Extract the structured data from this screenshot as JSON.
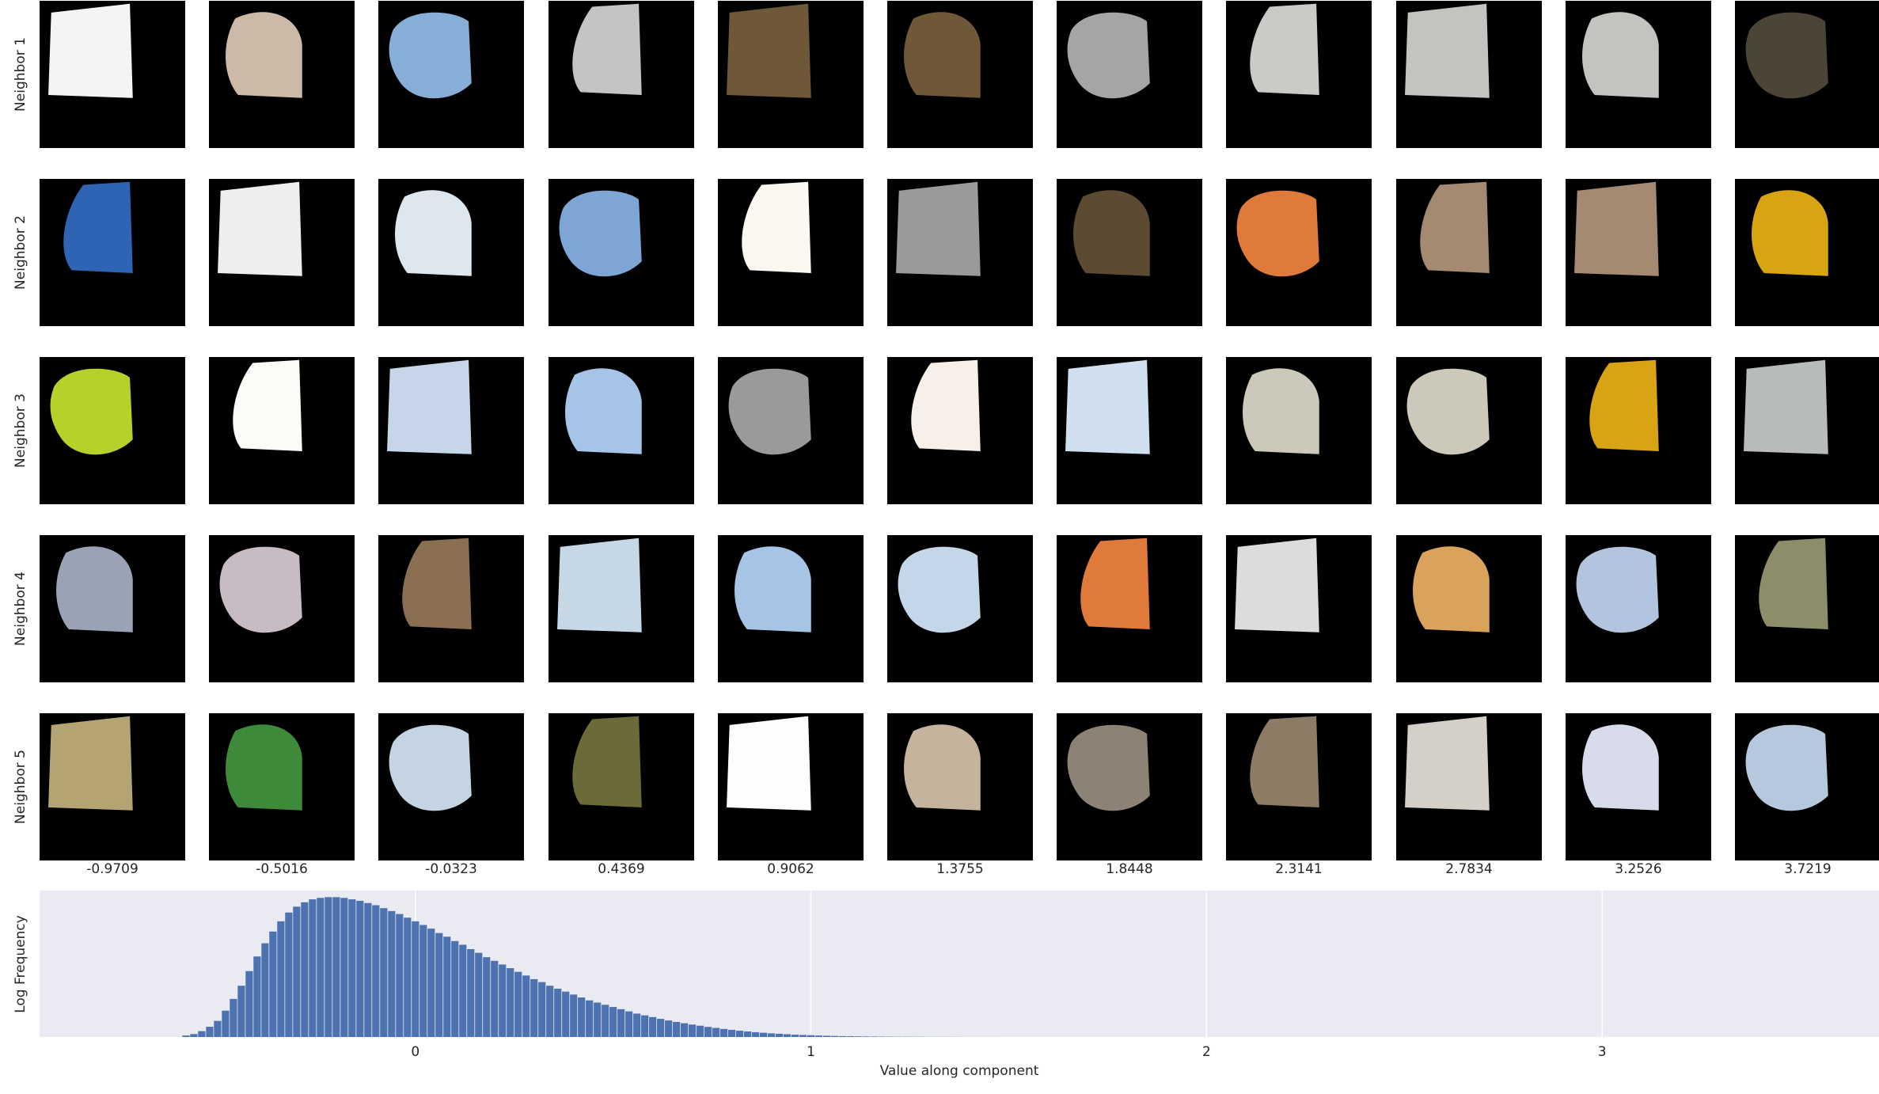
{
  "row_labels": [
    "Neighbor 1",
    "Neighbor 2",
    "Neighbor 3",
    "Neighbor 4",
    "Neighbor 5"
  ],
  "column_values": [
    "-0.9709",
    "-0.5016",
    "-0.0323",
    "0.4369",
    "0.9062",
    "1.3755",
    "1.8448",
    "2.3141",
    "2.7834",
    "3.2526",
    "3.7219"
  ],
  "colors": {
    "tile_background": "#000000",
    "histogram_background": "#eaeaf2",
    "bar": "#4c72b0",
    "grid": "#ffffff"
  },
  "tiles": [
    [
      "#f2f4f6",
      "#cdb9a8",
      "#86aed6",
      "#c4c4c2",
      "#6e5838",
      "#6e5838",
      "#a5a5a5",
      "#c9cbc6",
      "#c2c4bf",
      "#c2c4bf",
      "#4a4536"
    ],
    [
      "#2f64b4",
      "#eeeeee",
      "#dfe7ee",
      "#7ea6d4",
      "#fbf8f2",
      "#9a9a9a",
      "#5c4a32",
      "#e07a3a",
      "#a48a70",
      "#a48a70",
      "#d8a414"
    ],
    [
      "#b8d02a",
      "#fdfbf8",
      "#c6d6e8",
      "#a6c4e8",
      "#9a9a9a",
      "#f6f0e8",
      "#cfdff0",
      "#ccc9ba",
      "#ccc9ba",
      "#d8a414",
      "#b8bcb8"
    ],
    [
      "#9aa3b3",
      "#c7bcc4",
      "#8a7050",
      "#c6d7e6",
      "#a6c4e4",
      "#c3d6ea",
      "#e07a3a",
      "#dcdcdc",
      "#d9a35c",
      "#b3c5de",
      "#8d8d6a"
    ],
    [
      "#b4a474",
      "#3f8a3a",
      "#c4d4e2",
      "#6b6b3a",
      "#fdfdfd",
      "#c4b49e",
      "#8c8276",
      "#8c7c66",
      "#d4d0c8",
      "#d8dbea",
      "#b6c8de"
    ]
  ],
  "chart_data": {
    "type": "bar",
    "xlabel": "Value along component",
    "ylabel": "Log Frequency",
    "xlim": [
      -0.95,
      3.7
    ],
    "ylim": [
      0,
      1.0
    ],
    "xticks": [
      0,
      1,
      2,
      3
    ],
    "xtick_labels": [
      "0",
      "1",
      "2",
      "3"
    ],
    "grid": true,
    "bin_width": 0.02,
    "x": [
      -0.58,
      -0.56,
      -0.54,
      -0.52,
      -0.5,
      -0.48,
      -0.46,
      -0.44,
      -0.42,
      -0.4,
      -0.38,
      -0.36,
      -0.34,
      -0.32,
      -0.3,
      -0.28,
      -0.26,
      -0.24,
      -0.22,
      -0.2,
      -0.18,
      -0.16,
      -0.14,
      -0.12,
      -0.1,
      -0.08,
      -0.06,
      -0.04,
      -0.02,
      0,
      0.02,
      0.04,
      0.06,
      0.08,
      0.1,
      0.12,
      0.14,
      0.16,
      0.18,
      0.2,
      0.22,
      0.24,
      0.26,
      0.28,
      0.3,
      0.32,
      0.34,
      0.36,
      0.38,
      0.4,
      0.42,
      0.44,
      0.46,
      0.48,
      0.5,
      0.52,
      0.54,
      0.56,
      0.58,
      0.6,
      0.62,
      0.64,
      0.66,
      0.68,
      0.7,
      0.72,
      0.74,
      0.76,
      0.78,
      0.8,
      0.82,
      0.84,
      0.86,
      0.88,
      0.9,
      0.92,
      0.94,
      0.96,
      0.98,
      1.0,
      1.02,
      1.04,
      1.06,
      1.08,
      1.1,
      1.12,
      1.14,
      1.16,
      1.18,
      1.2,
      1.22,
      1.24,
      1.26,
      1.28,
      1.3,
      1.32,
      1.34,
      1.36,
      1.38,
      1.4,
      1.42,
      1.44,
      1.46,
      1.48,
      1.5
    ],
    "values": [
      0.01,
      0.02,
      0.04,
      0.07,
      0.11,
      0.18,
      0.26,
      0.35,
      0.45,
      0.55,
      0.64,
      0.72,
      0.79,
      0.85,
      0.89,
      0.92,
      0.94,
      0.95,
      0.955,
      0.955,
      0.95,
      0.94,
      0.93,
      0.915,
      0.9,
      0.88,
      0.86,
      0.84,
      0.815,
      0.79,
      0.765,
      0.74,
      0.71,
      0.685,
      0.655,
      0.63,
      0.6,
      0.575,
      0.545,
      0.52,
      0.495,
      0.47,
      0.445,
      0.42,
      0.395,
      0.375,
      0.35,
      0.33,
      0.31,
      0.29,
      0.27,
      0.25,
      0.235,
      0.22,
      0.205,
      0.19,
      0.175,
      0.16,
      0.148,
      0.136,
      0.124,
      0.113,
      0.103,
      0.094,
      0.085,
      0.077,
      0.069,
      0.062,
      0.055,
      0.049,
      0.043,
      0.038,
      0.033,
      0.029,
      0.025,
      0.022,
      0.019,
      0.016,
      0.014,
      0.012,
      0.01,
      0.0085,
      0.007,
      0.006,
      0.005,
      0.0042,
      0.0035,
      0.003,
      0.0025,
      0.002,
      0.0017,
      0.0014,
      0.0012,
      0.001,
      0.0008,
      0.0007,
      0.0006,
      0.0005,
      0.0004,
      0.0003,
      0.0003,
      0.0002,
      0.0002,
      0.0001,
      0.0001
    ]
  }
}
